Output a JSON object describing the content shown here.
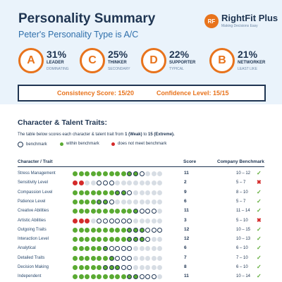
{
  "header": {
    "title": "Personality Summary",
    "subtitle": "Peter's Personality Type is A/C"
  },
  "logo": {
    "mark": "RF",
    "name": "RightFit Plus",
    "tagline": "Making Decisions Easy"
  },
  "types": [
    {
      "letter": "A",
      "pct": "31%",
      "role": "LEADER",
      "level": "DOMINATING"
    },
    {
      "letter": "C",
      "pct": "25%",
      "role": "THINKER",
      "level": "SECONDARY"
    },
    {
      "letter": "D",
      "pct": "22%",
      "role": "SUPPORTER",
      "level": "TYPICAL"
    },
    {
      "letter": "B",
      "pct": "21%",
      "role": "NETWORKER",
      "level": "LEAST LIKE"
    }
  ],
  "scores": {
    "consistency": "Consistency Score: 15/20",
    "confidence": "Confidence Level: 15/15"
  },
  "traits_section": {
    "title": "Character & Talent Traits:",
    "desc_pre": "The table below scores each character & talent trait from",
    "low": "1 (Weak)",
    "to": "to",
    "high": "15 (Extreme).",
    "legend": {
      "benchmark": "benchmark",
      "within": "within benchmark",
      "outside": "does not meet benchmark"
    },
    "columns": {
      "trait": "Character / Trait",
      "score": "Score",
      "benchmark": "Company Benchmark"
    }
  },
  "colors": {
    "navy": "#1f3552",
    "orange": "#e8731c",
    "green": "#5aaa32",
    "red": "#d42a2a",
    "grey": "#d7dde4"
  },
  "traits": [
    {
      "name": "Stress Management",
      "score": 11,
      "bench_lo": 10,
      "bench_hi": 12,
      "benchmark": "10 – 12",
      "meets": true
    },
    {
      "name": "Sensitivity Level",
      "score": 2,
      "bench_lo": 5,
      "bench_hi": 7,
      "benchmark": "5 – 7",
      "meets": false
    },
    {
      "name": "Compassion Level",
      "score": 9,
      "bench_lo": 8,
      "bench_hi": 10,
      "benchmark": "8 – 10",
      "meets": true
    },
    {
      "name": "Patience Level",
      "score": 6,
      "bench_lo": 5,
      "bench_hi": 7,
      "benchmark": "5 – 7",
      "meets": true
    },
    {
      "name": "Creative Abilities",
      "score": 11,
      "bench_lo": 11,
      "bench_hi": 14,
      "benchmark": "11 – 14",
      "meets": true
    },
    {
      "name": "Artistic Abilities",
      "score": 3,
      "bench_lo": 5,
      "bench_hi": 10,
      "benchmark": "5 – 10",
      "meets": false
    },
    {
      "name": "Outgoing Traits",
      "score": 12,
      "bench_lo": 10,
      "bench_hi": 15,
      "benchmark": "10 – 15",
      "meets": true
    },
    {
      "name": "Interaction Level",
      "score": 12,
      "bench_lo": 10,
      "bench_hi": 13,
      "benchmark": "10 – 13",
      "meets": true
    },
    {
      "name": "Analytical",
      "score": 6,
      "bench_lo": 6,
      "bench_hi": 10,
      "benchmark": "6 – 10",
      "meets": true
    },
    {
      "name": "Detailed Traits",
      "score": 7,
      "bench_lo": 7,
      "bench_hi": 10,
      "benchmark": "7 – 10",
      "meets": true
    },
    {
      "name": "Decision Making",
      "score": 8,
      "bench_lo": 6,
      "bench_hi": 10,
      "benchmark": "6 – 10",
      "meets": true
    },
    {
      "name": "Independent",
      "score": 11,
      "bench_lo": 10,
      "bench_hi": 14,
      "benchmark": "10 – 14",
      "meets": true
    }
  ]
}
